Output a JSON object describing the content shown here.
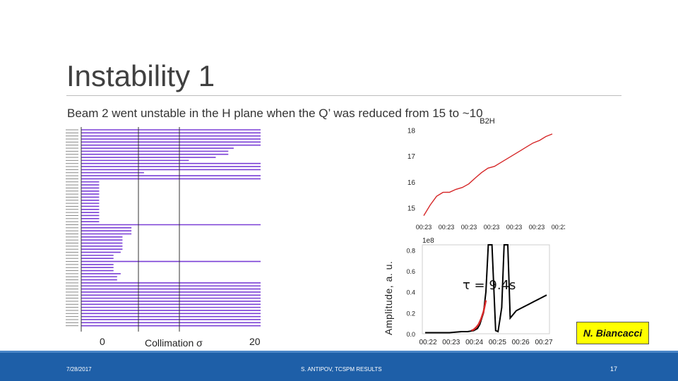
{
  "slide": {
    "title": "Instability 1",
    "subtitle": "Beam 2 went unstable in the H plane when the Q’ was reduced from 15 to ~10",
    "credit": "N. Biancacci",
    "footer": {
      "date": "7/28/2017",
      "center": "S. ANTIPOV, TCSPM RESULTS",
      "page": "17"
    }
  },
  "collimation_chart": {
    "xlabel": "Collimation σ",
    "tick_labels": [
      "0",
      "20"
    ],
    "bar_color": "#7a3fd6"
  },
  "chart_data": [
    {
      "type": "line",
      "title": "B2H",
      "ylim": [
        14.5,
        18.2
      ],
      "yticks": [
        15,
        16,
        17,
        18
      ],
      "xtick_labels": [
        "00:23",
        "00:23",
        "00:23",
        "00:23",
        "00:23",
        "00:23",
        "00:23"
      ],
      "series": [
        {
          "color": "#d62728",
          "x": [
            0.0,
            0.05,
            0.1,
            0.15,
            0.2,
            0.25,
            0.3,
            0.35,
            0.4,
            0.45,
            0.5,
            0.55,
            0.6,
            0.65,
            0.7,
            0.75,
            0.8,
            0.85,
            0.9,
            0.95,
            1.0
          ],
          "y": [
            14.7,
            15.0,
            15.3,
            15.5,
            15.6,
            15.8,
            15.9,
            16.0,
            16.15,
            16.3,
            16.45,
            16.6,
            16.75,
            16.9,
            17.05,
            17.2,
            17.35,
            17.5,
            17.6,
            17.75,
            17.85
          ]
        }
      ]
    },
    {
      "type": "line",
      "ylabel": "Amplitude, a. u.",
      "scale_label": "1e8",
      "annotation": "τ = 9.4s",
      "ylim": [
        0,
        0.85
      ],
      "yticks": [
        0.0,
        0.2,
        0.4,
        0.6,
        0.8
      ],
      "xtick_labels": [
        "00:22",
        "00:23",
        "00:24",
        "00:25",
        "00:26",
        "00:27"
      ],
      "series": [
        {
          "color": "#000000",
          "x": [
            0.0,
            0.1,
            0.2,
            0.3,
            0.35,
            0.4,
            0.43,
            0.45,
            0.48,
            0.5,
            0.52,
            0.55,
            0.58,
            0.6,
            0.63,
            0.65,
            0.68,
            0.7,
            0.75,
            0.8,
            0.85,
            0.9,
            0.95,
            1.0
          ],
          "y": [
            0.01,
            0.01,
            0.01,
            0.02,
            0.02,
            0.03,
            0.05,
            0.09,
            0.2,
            0.4,
            0.85,
            0.85,
            0.03,
            0.02,
            0.25,
            0.85,
            0.85,
            0.15,
            0.22,
            0.25,
            0.28,
            0.31,
            0.34,
            0.37
          ]
        },
        {
          "color": "#d62728",
          "x": [
            0.38,
            0.4,
            0.42,
            0.44,
            0.46,
            0.48,
            0.5
          ],
          "y": [
            0.03,
            0.04,
            0.06,
            0.09,
            0.14,
            0.21,
            0.32
          ]
        }
      ]
    }
  ]
}
